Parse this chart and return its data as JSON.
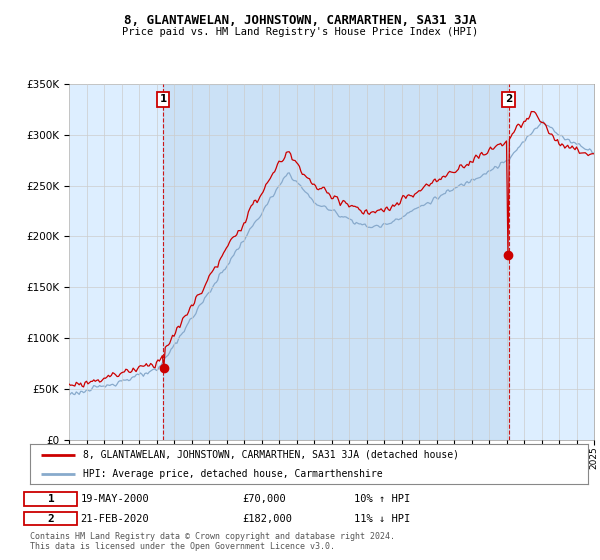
{
  "title": "8, GLANTAWELAN, JOHNSTOWN, CARMARTHEN, SA31 3JA",
  "subtitle": "Price paid vs. HM Land Registry's House Price Index (HPI)",
  "legend_line1": "8, GLANTAWELAN, JOHNSTOWN, CARMARTHEN, SA31 3JA (detached house)",
  "legend_line2": "HPI: Average price, detached house, Carmarthenshire",
  "transaction1_date": "19-MAY-2000",
  "transaction1_price": "£70,000",
  "transaction1_hpi": "10% ↑ HPI",
  "transaction1_year": 2000.38,
  "transaction1_value": 70000,
  "transaction2_date": "21-FEB-2020",
  "transaction2_price": "£182,000",
  "transaction2_hpi": "11% ↓ HPI",
  "transaction2_year": 2020.12,
  "transaction2_value": 182000,
  "footnote": "Contains HM Land Registry data © Crown copyright and database right 2024.\nThis data is licensed under the Open Government Licence v3.0.",
  "red_color": "#cc0000",
  "blue_color": "#88aacc",
  "shade_color": "#ddeeff",
  "background_color": "#ffffff",
  "grid_color": "#cccccc",
  "xmin": 1995,
  "xmax": 2025,
  "ymin": 0,
  "ymax": 350000
}
